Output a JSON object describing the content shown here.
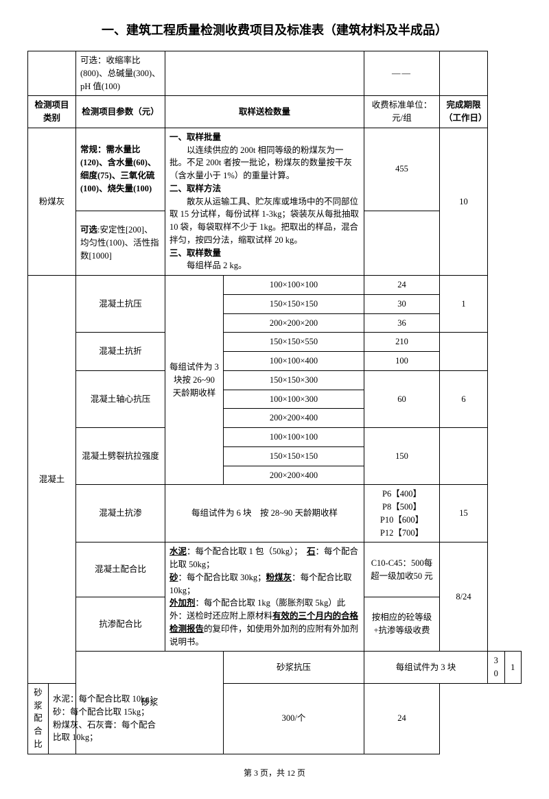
{
  "title": "一、建筑工程质量检测收费项目及标准表（建筑材料及半成品）",
  "row_top": {
    "params": "可选：收缩率比(800)、总碱量(300)、pH 值(100)",
    "fee": "——"
  },
  "header": {
    "c1": "检测项目类别",
    "c2": "检测项目参数（元）",
    "c3": "取样送检数量",
    "c4": "收费标准单位：元/组",
    "c5": "完成期限（工作日）"
  },
  "fmh": {
    "cat": "粉煤灰",
    "p1": "常规：需水量比(120)、含水量(60)、细度(75)、三氧化硫(100)、烧失量(100)",
    "p2": "可选:安定性[200]、均匀性(100)、活性指数[1000]",
    "desc_t1": "一、取样批量",
    "desc_l1": "以连续供应的 200t 相同等级的粉煤灰为一批。不足 200t 者按一批论，粉煤灰的数量按干灰（含水量小于 1%）的重量计算。",
    "desc_t2": "二、取样方法",
    "desc_l2": "散灰从运输工具、贮灰库或堆场中的不同部位取 15 分试样，每份试样 1-3kg；袋装灰从每批抽取 10 袋，每袋取样不少于 1kg。把取出的样品，混合拌匀，按四分法，缩取试样 20 kg。",
    "desc_t3": "三、取样数量",
    "desc_l3": "每组样品 2 kg。",
    "fee": "455",
    "days": "10"
  },
  "hnt": {
    "cat": "混凝土",
    "note": "每组试件为 3 块按 26~90天龄期收样",
    "ky": {
      "name": "混凝土抗压",
      "s1": "100×100×100",
      "f1": "24",
      "s2": "150×150×150",
      "f2": "30",
      "s3": "200×200×200",
      "f3": "36",
      "days": "1"
    },
    "kz": {
      "name": "混凝土抗折",
      "s1": "150×150×550",
      "f1": "210",
      "s2": "100×100×400",
      "f2": "100"
    },
    "zx": {
      "name": "混凝土轴心抗压",
      "s1": "150×150×300",
      "s2": "100×100×300",
      "s3": "200×200×400",
      "fee": "60",
      "days": "6"
    },
    "pl": {
      "name": "混凝土劈裂抗拉强度",
      "s1": "100×100×100",
      "s2": "150×150×150",
      "s3": "200×200×400",
      "fee": "150"
    },
    "ks": {
      "name": "混凝土抗渗",
      "desc": "每组试件为 6 块　按 28~90 天龄期收样",
      "fee": "P6【400】\nP8【500】\nP10【600】\nP12【700】",
      "days": "15"
    },
    "phb": {
      "name": "混凝土配合比",
      "fee": "C10-C45：500每超一级加收50 元"
    },
    "ksphb": {
      "name": "抗渗配合比",
      "fee": "按相应的砼等级+抗渗等级收费",
      "days": "8/24"
    },
    "phbdesc": {
      "l1a": "水泥",
      "l1b": "：每个配合比取 1 包（50kg）；　",
      "l1c": "石",
      "l1d": "：每个配合比取 50kg；",
      "l2a": "砂",
      "l2b": "：每个配合比取 30kg；",
      "l2c": "粉煤灰",
      "l2d": "：每个配合比取 10kg；",
      "l3a": "外加剂",
      "l3b": "：每个配合比取 1kg（膨胀剂取 5kg）此外：送检时还应附上原材料",
      "l3c": "有效的三个月内的合格检测报告",
      "l3d": "的复印件，如使用外加剂的应附有外加剂说明书。"
    }
  },
  "sj": {
    "cat": "砂浆",
    "ky": {
      "name": "砂浆抗压",
      "desc": "每组试件为 3 块",
      "fee": "30",
      "days": "1"
    },
    "phb": {
      "name": "砂浆配合比",
      "l1": "水泥：每个配合比取 10kg；",
      "l2": "砂：每个配合比取 15kg；",
      "l3": "粉煤灰、石灰膏：每个配合比取 10kg；",
      "fee": "300/个",
      "days": "24"
    }
  },
  "footer": "第 3 页，共 12 页"
}
